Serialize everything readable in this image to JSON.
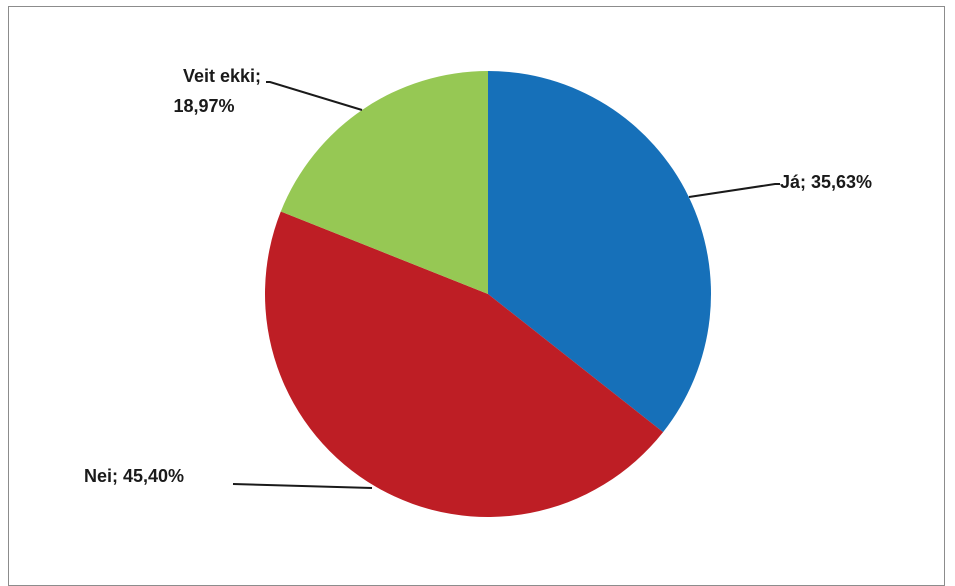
{
  "chart_data": {
    "type": "pie",
    "title": "",
    "slices": [
      {
        "label": "Já",
        "value": 35.63,
        "display": "Já; 35,63%",
        "color": "#1670b9"
      },
      {
        "label": "Nei",
        "value": 45.4,
        "display": "Nei; 45,40%",
        "color": "#be1e25"
      },
      {
        "label": "Veit ekki",
        "value": 18.97,
        "display_lines": [
          "Veit ekki;",
          "18,97%"
        ],
        "color": "#96c854"
      }
    ],
    "start_angle": "12 o'clock",
    "direction": "clockwise",
    "legend": "none",
    "data_labels": "outside with leader lines"
  }
}
